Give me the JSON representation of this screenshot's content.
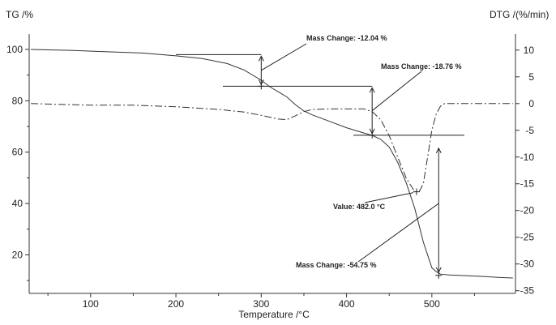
{
  "chart_data": {
    "type": "line",
    "title": "",
    "xlabel": "Temperature /°C",
    "ylabel_left": "TG /%",
    "ylabel_right": "DTG /(%/min)",
    "xlim": [
      28,
      598
    ],
    "ylim_left": [
      5,
      106
    ],
    "ylim_right": [
      -35.5,
      13
    ],
    "x_ticks": [
      100,
      200,
      300,
      400,
      500
    ],
    "y_ticks_left": [
      20,
      40,
      60,
      80,
      100
    ],
    "y_ticks_right": [
      10,
      5,
      0,
      -5,
      -10,
      -15,
      -20,
      -25,
      -30,
      -35
    ],
    "grid": false,
    "series": [
      {
        "axis": "left",
        "style": "solid",
        "x": [
          30,
          80,
          120,
          160,
          200,
          230,
          260,
          280,
          300,
          310,
          320,
          330,
          340,
          350,
          360,
          380,
          400,
          420,
          430,
          440,
          450,
          460,
          470,
          480,
          490,
          500,
          505,
          510,
          520,
          540,
          560,
          580,
          595
        ],
        "y": [
          100,
          99.6,
          99.1,
          98.6,
          97.5,
          96.5,
          94.5,
          92,
          88,
          85.5,
          83.5,
          81.5,
          78.5,
          76,
          74.5,
          72,
          69.5,
          67.5,
          66.5,
          65,
          62,
          56,
          48,
          38,
          25,
          15,
          13.5,
          12.5,
          12.2,
          11.9,
          11.6,
          11.2,
          11
        ]
      },
      {
        "axis": "right",
        "style": "dashdot",
        "x": [
          30,
          100,
          150,
          200,
          250,
          280,
          300,
          320,
          330,
          340,
          350,
          360,
          380,
          400,
          420,
          430,
          440,
          450,
          460,
          470,
          480,
          485,
          490,
          495,
          500,
          505,
          510,
          515,
          520,
          530,
          550,
          595
        ],
        "y": [
          0,
          -0.3,
          -0.3,
          -0.6,
          -1.1,
          -1.6,
          -2.2,
          -2.9,
          -3,
          -2.3,
          -1.5,
          -1.1,
          -1,
          -1,
          -1,
          -1.5,
          -3,
          -6,
          -10,
          -14,
          -16.5,
          -16.5,
          -15,
          -10,
          -5,
          -2,
          -0.5,
          0,
          0,
          0,
          0,
          0
        ]
      }
    ],
    "annotations": [
      {
        "label": "Mass Change: -12.04 %",
        "from_x": 300,
        "from_y": 98,
        "to_y": 85.7
      },
      {
        "label": "Mass Change: -18.76 %",
        "from_x": 430,
        "from_y": 85.7,
        "to_y": 66.6
      },
      {
        "label": "Mass Change: -54.75 %",
        "from_x": 508,
        "from_y": 66.6,
        "to_y": 12
      },
      {
        "label": "Value: 482.0 °C",
        "x": 482,
        "y_right": -16.5
      }
    ]
  }
}
